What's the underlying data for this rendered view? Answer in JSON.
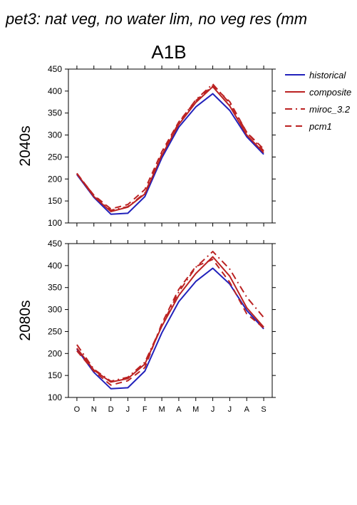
{
  "figure": {
    "title": "pet3: nat veg, no water lim, no veg res (mm",
    "scenario": "A1B"
  },
  "legend": {
    "placement": "right",
    "items": [
      {
        "label": "historical",
        "color": "#2222bb",
        "dash": "solid"
      },
      {
        "label": "composite",
        "color": "#bb2222",
        "dash": "solid"
      },
      {
        "label": "miroc_3.2",
        "color": "#bb2222",
        "dash": "dashdot"
      },
      {
        "label": "pcm1",
        "color": "#bb2222",
        "dash": "dash"
      }
    ]
  },
  "chart_data": [
    {
      "type": "line",
      "ylabel": "2040s",
      "categories": [
        "O",
        "N",
        "D",
        "J",
        "F",
        "M",
        "A",
        "M",
        "J",
        "J",
        "A",
        "S"
      ],
      "ylim": [
        100,
        450
      ],
      "yticks": [
        100,
        150,
        200,
        250,
        300,
        350,
        400,
        450
      ],
      "series": [
        {
          "name": "historical",
          "values": [
            210,
            158,
            120,
            122,
            160,
            248,
            318,
            364,
            394,
            356,
            296,
            256
          ]
        },
        {
          "name": "composite",
          "values": [
            212,
            160,
            126,
            136,
            166,
            254,
            324,
            374,
            410,
            366,
            300,
            260
          ]
        },
        {
          "name": "miroc_3.2",
          "values": [
            213,
            162,
            129,
            137,
            168,
            256,
            328,
            380,
            416,
            372,
            306,
            264
          ]
        },
        {
          "name": "pcm1",
          "values": [
            212,
            163,
            132,
            142,
            176,
            262,
            330,
            378,
            412,
            376,
            306,
            268
          ]
        }
      ]
    },
    {
      "type": "line",
      "ylabel": "2080s",
      "categories": [
        "O",
        "N",
        "D",
        "J",
        "F",
        "M",
        "A",
        "M",
        "J",
        "J",
        "A",
        "S"
      ],
      "ylim": [
        100,
        450
      ],
      "yticks": [
        100,
        150,
        200,
        250,
        300,
        350,
        400,
        450
      ],
      "series": [
        {
          "name": "historical",
          "values": [
            210,
            157,
            120,
            122,
            160,
            247,
            318,
            364,
            394,
            358,
            298,
            256
          ]
        },
        {
          "name": "composite",
          "values": [
            212,
            162,
            135,
            143,
            176,
            262,
            332,
            382,
            420,
            376,
            304,
            260
          ]
        },
        {
          "name": "miroc_3.2",
          "values": [
            220,
            164,
            137,
            146,
            180,
            264,
            340,
            396,
            432,
            392,
            328,
            282
          ]
        },
        {
          "name": "pcm1",
          "values": [
            206,
            160,
            128,
            138,
            168,
            268,
            346,
            398,
            414,
            362,
            290,
            258
          ]
        }
      ]
    }
  ]
}
